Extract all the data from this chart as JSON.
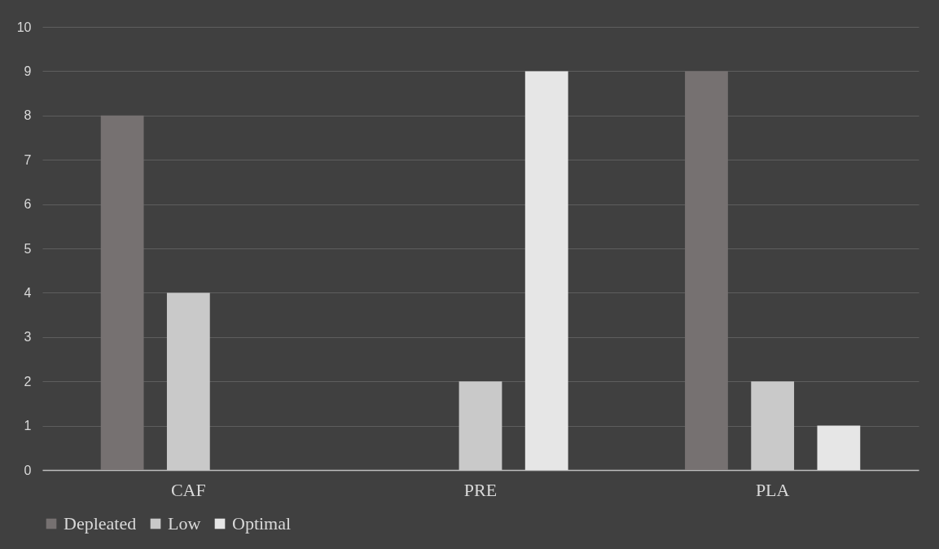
{
  "chart_data": {
    "type": "bar",
    "categories": [
      "CAF",
      "PRE",
      "PLA"
    ],
    "series": [
      {
        "name": "Depleated",
        "color": "#767171",
        "values": [
          8,
          0,
          9
        ]
      },
      {
        "name": "Low",
        "color": "#c9c9c9",
        "values": [
          4,
          2,
          2
        ]
      },
      {
        "name": "Optimal",
        "color": "#e6e6e6",
        "values": [
          0,
          9,
          1
        ]
      }
    ],
    "ylim": [
      0,
      10
    ],
    "yticks": [
      0,
      1,
      2,
      3,
      4,
      5,
      6,
      7,
      8,
      9,
      10
    ],
    "grid": "y",
    "legend": "bottom"
  }
}
